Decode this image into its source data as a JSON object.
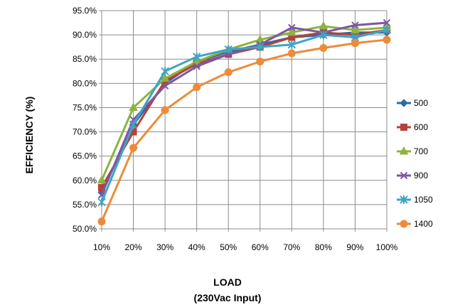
{
  "chart_data": {
    "type": "line",
    "title": "",
    "ylabel": "EFFICIENCY (%)",
    "xlabel": "LOAD",
    "xlabel_sub": "(230Vac Input)",
    "categories": [
      "10%",
      "20%",
      "30%",
      "40%",
      "50%",
      "60%",
      "70%",
      "80%",
      "90%",
      "100%"
    ],
    "ylim": [
      50,
      95
    ],
    "yticks": [
      50,
      55,
      60,
      65,
      70,
      75,
      80,
      85,
      90,
      95
    ],
    "ytick_labels": [
      "50.0%",
      "55.0%",
      "60.0%",
      "65.0%",
      "70.0%",
      "75.0%",
      "80.0%",
      "85.0%",
      "90.0%",
      "95.0%"
    ],
    "grid": "horizontal and vertical",
    "legend_position": "right",
    "series": [
      {
        "name": "500",
        "color": "#2F69A8",
        "marker": "diamond",
        "values": [
          57.5,
          71.5,
          80.0,
          84.5,
          86.5,
          88.0,
          89.5,
          90.0,
          90.5,
          90.5
        ]
      },
      {
        "name": "600",
        "color": "#B5413A",
        "marker": "square",
        "values": [
          58.5,
          70.0,
          80.5,
          84.0,
          86.0,
          87.5,
          89.5,
          90.5,
          90.0,
          91.0
        ]
      },
      {
        "name": "700",
        "color": "#8DB33F",
        "marker": "triangle",
        "values": [
          60.0,
          75.0,
          81.0,
          84.5,
          87.0,
          89.0,
          90.5,
          91.8,
          91.0,
          91.5
        ]
      },
      {
        "name": "900",
        "color": "#7D57A3",
        "marker": "x",
        "values": [
          57.0,
          72.5,
          79.5,
          83.5,
          86.0,
          88.0,
          91.5,
          90.5,
          92.0,
          92.5
        ]
      },
      {
        "name": "1050",
        "color": "#3FA4C4",
        "marker": "star",
        "values": [
          55.5,
          71.5,
          82.5,
          85.5,
          87.0,
          87.5,
          88.0,
          90.0,
          89.5,
          91.0
        ]
      },
      {
        "name": "1400",
        "color": "#ED8B3A",
        "marker": "circle",
        "values": [
          51.5,
          66.7,
          74.5,
          79.2,
          82.3,
          84.5,
          86.2,
          87.3,
          88.3,
          89.0
        ]
      }
    ]
  }
}
